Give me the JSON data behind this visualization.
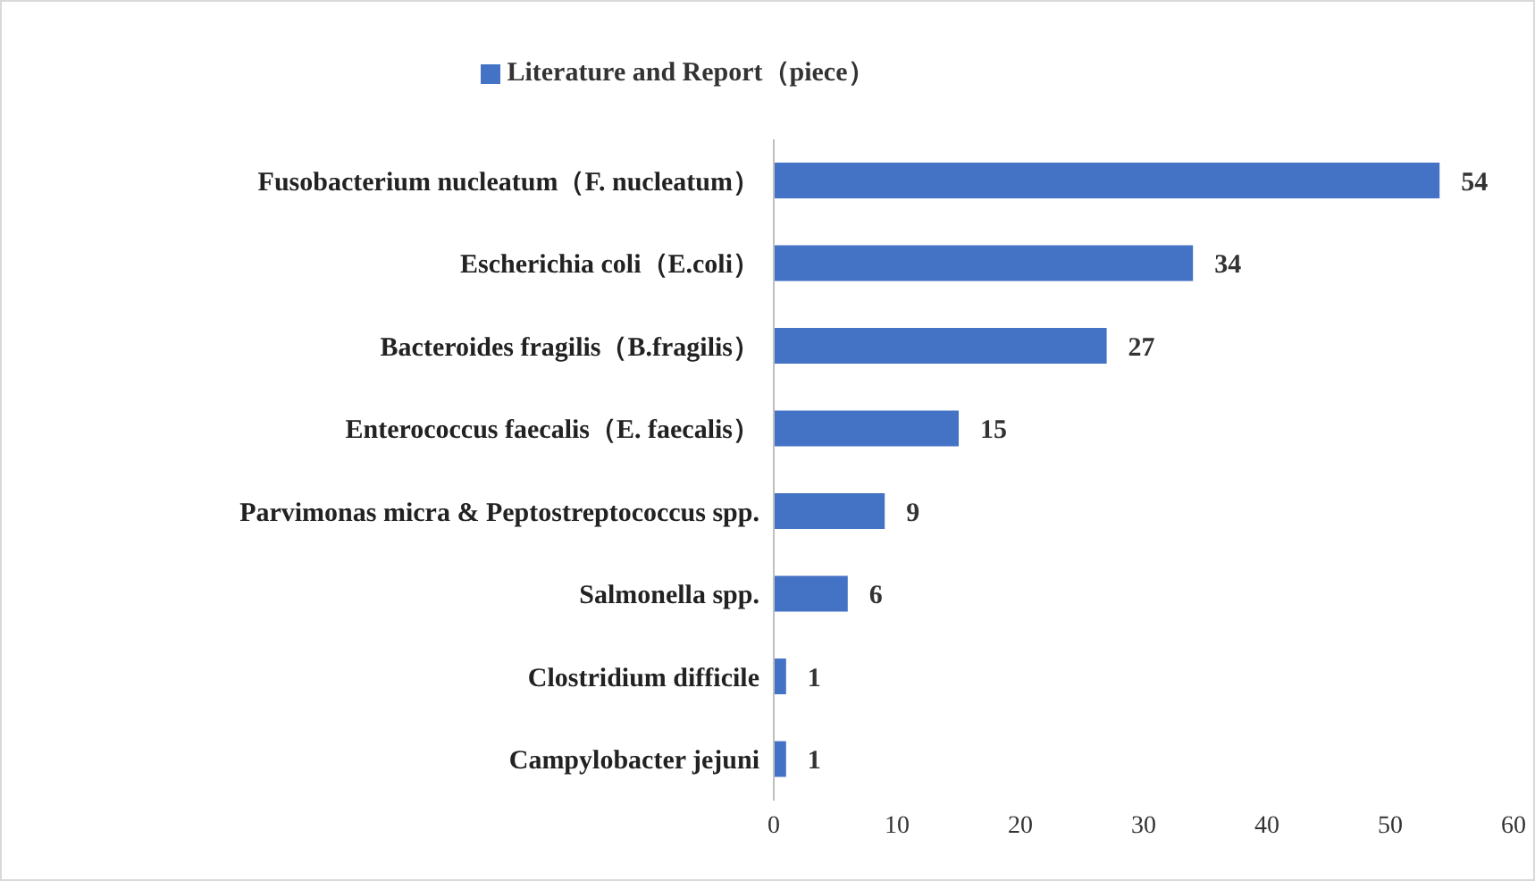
{
  "chart_data": {
    "type": "bar",
    "orientation": "horizontal",
    "legend": "top",
    "categories": [
      "Fusobacterium nucleatum（F. nucleatum）",
      "Escherichia coli（E.coli）",
      "Bacteroides fragilis（B.fragilis）",
      "Enterococcus faecalis（E. faecalis）",
      "Parvimonas micra & Peptostreptococcus spp.",
      "Salmonella spp.",
      "Clostridium difficile",
      "Campylobacter jejuni"
    ],
    "series": [
      {
        "name": "Literature and Report（piece）",
        "color": "#4472c4",
        "values": [
          54,
          34,
          27,
          15,
          9,
          6,
          1,
          1
        ]
      }
    ],
    "xlim": [
      0,
      60
    ],
    "xticks": [
      0,
      10,
      20,
      30,
      40,
      50,
      60
    ],
    "data_labels": true,
    "grid": false
  }
}
